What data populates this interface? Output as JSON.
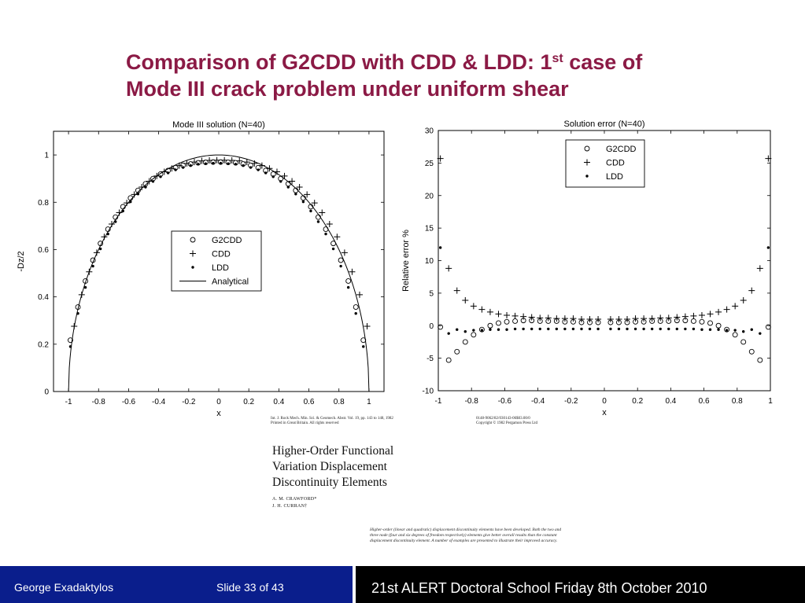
{
  "slide": {
    "title_main": "Comparison of G2CDD with CDD & LDD: 1",
    "title_sup": "st",
    "title_tail": " case of",
    "title_line2": "Mode III crack problem under uniform shear"
  },
  "chart_data": [
    {
      "type": "scatter",
      "title": "Mode III solution (N=40)",
      "xlabel": "x",
      "ylabel": "-Dz/2",
      "xlim": [
        -1.1,
        1.1
      ],
      "ylim": [
        0,
        1.1
      ],
      "x_ticks": [
        "-1",
        "-0.8",
        "-0.6",
        "-0.4",
        "-0.2",
        "0",
        "0.2",
        "0.4",
        "0.6",
        "0.8",
        "1"
      ],
      "y_ticks": [
        "0",
        "0.2",
        "0.4",
        "0.6",
        "0.8",
        "1"
      ],
      "grid": false,
      "legend_position": "center-right",
      "legend": [
        {
          "name": "G2CDD",
          "marker": "circle"
        },
        {
          "name": "CDD",
          "marker": "plus"
        },
        {
          "name": "LDD",
          "marker": "dot"
        },
        {
          "name": "Analytical",
          "marker": "line"
        }
      ],
      "x": [
        -0.9875,
        -0.9625,
        -0.9375,
        -0.9125,
        -0.8875,
        -0.8625,
        -0.8375,
        -0.8125,
        -0.7875,
        -0.7625,
        -0.7375,
        -0.7125,
        -0.6875,
        -0.6625,
        -0.6375,
        -0.6125,
        -0.5875,
        -0.5625,
        -0.5375,
        -0.5125,
        -0.4875,
        -0.4625,
        -0.4375,
        -0.4125,
        -0.3875,
        -0.3625,
        -0.3375,
        -0.3125,
        -0.2875,
        -0.2625,
        -0.2375,
        -0.2125,
        -0.1875,
        -0.1625,
        -0.1375,
        -0.1125,
        -0.0875,
        -0.0625,
        -0.0375,
        -0.0125,
        0.0125,
        0.0375,
        0.0625,
        0.0875,
        0.1125,
        0.1375,
        0.1625,
        0.1875,
        0.2125,
        0.2375,
        0.2625,
        0.2875,
        0.3125,
        0.3375,
        0.3625,
        0.3875,
        0.4125,
        0.4375,
        0.4625,
        0.4875,
        0.5125,
        0.5375,
        0.5625,
        0.5875,
        0.6125,
        0.6375,
        0.6625,
        0.6875,
        0.7125,
        0.7375,
        0.7625,
        0.7875,
        0.8125,
        0.8375,
        0.8625,
        0.8875,
        0.9125,
        0.9375,
        0.9625,
        0.9875
      ],
      "series": [
        {
          "name": "G2CDD",
          "marker": "circle",
          "x_from": "x",
          "stride": 2,
          "offset": 0,
          "y": [
            0.217,
            0.357,
            0.467,
            0.555,
            0.626,
            0.686,
            0.737,
            0.781,
            0.818,
            0.85,
            0.878,
            0.9,
            0.919,
            0.934,
            0.946,
            0.956,
            0.962,
            0.967,
            0.969,
            0.97,
            0.97,
            0.969,
            0.967,
            0.962,
            0.956,
            0.946,
            0.934,
            0.919,
            0.9,
            0.878,
            0.85,
            0.818,
            0.781,
            0.737,
            0.686,
            0.626,
            0.555,
            0.467,
            0.357,
            0.217
          ]
        },
        {
          "name": "CDD",
          "marker": "plus",
          "x_from": "x",
          "stride": 2,
          "offset": 1,
          "y": [
            0.276,
            0.409,
            0.506,
            0.587,
            0.654,
            0.708,
            0.756,
            0.797,
            0.833,
            0.864,
            0.889,
            0.911,
            0.929,
            0.943,
            0.955,
            0.964,
            0.97,
            0.975,
            0.977,
            0.978,
            0.978,
            0.977,
            0.975,
            0.97,
            0.964,
            0.955,
            0.943,
            0.929,
            0.911,
            0.889,
            0.864,
            0.833,
            0.797,
            0.756,
            0.708,
            0.654,
            0.587,
            0.506,
            0.409,
            0.276
          ]
        },
        {
          "name": "LDD",
          "marker": "dot",
          "x_from": "x",
          "stride": 2,
          "offset": 0,
          "y": [
            0.19,
            0.33,
            0.44,
            0.53,
            0.603,
            0.666,
            0.718,
            0.763,
            0.802,
            0.835,
            0.864,
            0.888,
            0.908,
            0.924,
            0.937,
            0.947,
            0.955,
            0.961,
            0.963,
            0.965,
            0.965,
            0.963,
            0.961,
            0.955,
            0.947,
            0.937,
            0.924,
            0.908,
            0.888,
            0.864,
            0.835,
            0.802,
            0.763,
            0.718,
            0.666,
            0.603,
            0.53,
            0.44,
            0.33,
            0.19
          ]
        },
        {
          "name": "Analytical",
          "marker": "line",
          "formula": "sqrt(1 - x^2)"
        }
      ]
    },
    {
      "type": "scatter",
      "title": "Solution error (N=40)",
      "xlabel": "x",
      "ylabel": "Relative error %",
      "xlim": [
        -1,
        1
      ],
      "ylim": [
        -10,
        30
      ],
      "x_ticks": [
        "-1",
        "-0.8",
        "-0.6",
        "-0.4",
        "-0.2",
        "0",
        "0.2",
        "0.4",
        "0.6",
        "0.8",
        "1"
      ],
      "y_ticks": [
        "-10",
        "-5",
        "0",
        "5",
        "10",
        "15",
        "20",
        "25",
        "30"
      ],
      "grid": false,
      "legend_position": "top-right",
      "legend": [
        {
          "name": "G2CDD",
          "marker": "circle"
        },
        {
          "name": "CDD",
          "marker": "plus"
        },
        {
          "name": "LDD",
          "marker": "dot"
        }
      ],
      "x": [
        -0.9875,
        -0.9375,
        -0.8875,
        -0.8375,
        -0.7875,
        -0.7375,
        -0.6875,
        -0.6375,
        -0.5875,
        -0.5375,
        -0.4875,
        -0.4375,
        -0.3875,
        -0.3375,
        -0.2875,
        -0.2375,
        -0.1875,
        -0.1375,
        -0.0875,
        -0.0375,
        0.0375,
        0.0875,
        0.1375,
        0.1875,
        0.2375,
        0.2875,
        0.3375,
        0.3875,
        0.4375,
        0.4875,
        0.5375,
        0.5875,
        0.6375,
        0.6875,
        0.7375,
        0.7875,
        0.8375,
        0.8875,
        0.9375,
        0.9875
      ],
      "series": [
        {
          "name": "G2CDD",
          "marker": "circle",
          "y": [
            -0.2,
            -5.3,
            -4.0,
            -2.5,
            -1.4,
            -0.6,
            0.0,
            0.4,
            0.6,
            0.7,
            0.8,
            0.8,
            0.7,
            0.7,
            0.7,
            0.6,
            0.6,
            0.5,
            0.5,
            0.5,
            0.5,
            0.5,
            0.5,
            0.6,
            0.6,
            0.7,
            0.7,
            0.7,
            0.8,
            0.8,
            0.7,
            0.6,
            0.4,
            0.0,
            -0.6,
            -1.4,
            -2.5,
            -4.0,
            -5.3,
            -0.2
          ]
        },
        {
          "name": "CDD",
          "marker": "plus",
          "y": [
            25.7,
            8.8,
            5.4,
            3.9,
            3.0,
            2.5,
            2.1,
            1.8,
            1.6,
            1.5,
            1.4,
            1.3,
            1.2,
            1.2,
            1.1,
            1.1,
            1.1,
            1.0,
            1.0,
            1.0,
            1.0,
            1.0,
            1.0,
            1.1,
            1.1,
            1.1,
            1.2,
            1.2,
            1.3,
            1.4,
            1.5,
            1.6,
            1.8,
            2.1,
            2.5,
            3.0,
            3.9,
            5.4,
            8.8,
            25.7
          ]
        },
        {
          "name": "LDD",
          "marker": "dot",
          "y": [
            12.0,
            -1.2,
            -0.6,
            -0.9,
            -0.7,
            -0.7,
            -0.6,
            -0.6,
            -0.6,
            -0.5,
            -0.5,
            -0.5,
            -0.5,
            -0.5,
            -0.5,
            -0.5,
            -0.5,
            -0.5,
            -0.5,
            -0.5,
            -0.5,
            -0.5,
            -0.5,
            -0.5,
            -0.5,
            -0.5,
            -0.5,
            -0.5,
            -0.5,
            -0.5,
            -0.5,
            -0.6,
            -0.6,
            -0.6,
            -0.7,
            -0.7,
            -0.9,
            -0.6,
            -1.2,
            12.0
          ]
        }
      ]
    }
  ],
  "paper": {
    "journal": "Int. J. Rock Mech. Min. Sci. & Geomech. Abstr. Vol. 19, pp. 143 to 148, 1982\nPrinted in Great Britain. All rights reserved",
    "issn": "0148-9062/82/030143-06$03.00/0\nCopyright © 1982 Pergamon Press Ltd",
    "title": "Higher-Order Functional\nVariation Displacement\nDiscontinuity Elements",
    "authors": "A. M. CRAWFORD*\nJ. H. CURRAN†",
    "abstract": "Higher-order (linear and quadratic) displacement discontinuity elements have been developed. Both the two and three node (four and six degrees of freedom respectively) elements give better overall results than the constant displacement discontinuity element. A number of examples are presented to illustrate their improved accuracy."
  },
  "footer": {
    "author": "George Exadaktylos",
    "slide": "Slide 33 of 43",
    "event": "21st ALERT Doctoral School Friday 8th October 2010"
  },
  "colors": {
    "title": "#8b1a45",
    "footer_left": "#0a1e8c",
    "footer_right": "#000000"
  }
}
